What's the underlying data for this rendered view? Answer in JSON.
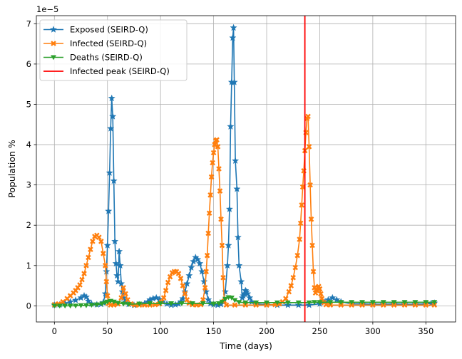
{
  "chart_data": {
    "type": "line",
    "title": "",
    "xlabel": "Time (days)",
    "ylabel": "Population %",
    "y_multiplier_label": "1e−5",
    "xlim": [
      -17,
      378
    ],
    "ylim": [
      -0.4,
      7.2
    ],
    "xticks": [
      0,
      50,
      100,
      150,
      200,
      250,
      300,
      350
    ],
    "yticks": [
      0,
      1,
      2,
      3,
      4,
      5,
      6,
      7
    ],
    "grid": true,
    "legend_position": "upper-left",
    "vline": {
      "name": "Infected peak (SEIRD-Q)",
      "x": 236,
      "color": "#ff0000"
    },
    "series": [
      {
        "name": "Exposed (SEIRD-Q)",
        "color": "#1f77b4",
        "marker": "star",
        "points": [
          [
            0,
            0.02
          ],
          [
            5,
            0.03
          ],
          [
            10,
            0.06
          ],
          [
            15,
            0.1
          ],
          [
            20,
            0.14
          ],
          [
            25,
            0.2
          ],
          [
            28,
            0.25
          ],
          [
            30,
            0.22
          ],
          [
            32,
            0.12
          ],
          [
            35,
            0.05
          ],
          [
            40,
            0.03
          ],
          [
            44,
            0.04
          ],
          [
            46,
            0.08
          ],
          [
            48,
            0.3
          ],
          [
            49,
            0.85
          ],
          [
            50,
            1.5
          ],
          [
            51,
            2.35
          ],
          [
            52,
            3.3
          ],
          [
            53,
            4.4
          ],
          [
            54,
            5.15
          ],
          [
            55,
            4.7
          ],
          [
            56,
            3.1
          ],
          [
            57,
            1.6
          ],
          [
            58,
            1.05
          ],
          [
            59,
            0.75
          ],
          [
            60,
            0.6
          ],
          [
            61,
            1.35
          ],
          [
            62,
            1.0
          ],
          [
            63,
            0.55
          ],
          [
            64,
            0.35
          ],
          [
            65,
            0.2
          ],
          [
            67,
            0.1
          ],
          [
            70,
            0.04
          ],
          [
            75,
            0.02
          ],
          [
            80,
            0.03
          ],
          [
            85,
            0.06
          ],
          [
            88,
            0.1
          ],
          [
            90,
            0.15
          ],
          [
            93,
            0.18
          ],
          [
            96,
            0.2
          ],
          [
            99,
            0.16
          ],
          [
            102,
            0.1
          ],
          [
            106,
            0.05
          ],
          [
            110,
            0.02
          ],
          [
            114,
            0.03
          ],
          [
            117,
            0.05
          ],
          [
            119,
            0.1
          ],
          [
            121,
            0.18
          ],
          [
            123,
            0.35
          ],
          [
            125,
            0.55
          ],
          [
            127,
            0.75
          ],
          [
            129,
            0.95
          ],
          [
            131,
            1.1
          ],
          [
            133,
            1.2
          ],
          [
            135,
            1.15
          ],
          [
            137,
            1.05
          ],
          [
            139,
            0.85
          ],
          [
            141,
            0.6
          ],
          [
            143,
            0.35
          ],
          [
            145,
            0.15
          ],
          [
            147,
            0.06
          ],
          [
            150,
            0.03
          ],
          [
            154,
            0.02
          ],
          [
            157,
            0.04
          ],
          [
            159,
            0.1
          ],
          [
            161,
            0.35
          ],
          [
            163,
            1.0
          ],
          [
            164,
            1.5
          ],
          [
            165,
            2.4
          ],
          [
            166,
            4.45
          ],
          [
            167,
            5.55
          ],
          [
            168,
            6.65
          ],
          [
            168.8,
            6.9
          ],
          [
            169.5,
            5.55
          ],
          [
            170.5,
            3.6
          ],
          [
            172,
            2.9
          ],
          [
            173,
            1.7
          ],
          [
            174,
            1.0
          ],
          [
            176,
            0.6
          ],
          [
            177,
            0.2
          ],
          [
            178,
            0.25
          ],
          [
            179,
            0.3
          ],
          [
            180,
            0.38
          ],
          [
            181,
            0.35
          ],
          [
            182,
            0.3
          ],
          [
            184,
            0.2
          ],
          [
            186,
            0.1
          ],
          [
            190,
            0.05
          ],
          [
            200,
            0.03
          ],
          [
            210,
            0.02
          ],
          [
            220,
            0.02
          ],
          [
            230,
            0.02
          ],
          [
            240,
            0.02
          ],
          [
            250,
            0.05
          ],
          [
            255,
            0.1
          ],
          [
            258,
            0.15
          ],
          [
            262,
            0.2
          ],
          [
            266,
            0.15
          ],
          [
            270,
            0.1
          ],
          [
            280,
            0.05
          ],
          [
            290,
            0.05
          ],
          [
            300,
            0.04
          ],
          [
            310,
            0.04
          ],
          [
            320,
            0.05
          ],
          [
            330,
            0.04
          ],
          [
            340,
            0.04
          ],
          [
            350,
            0.05
          ],
          [
            355,
            0.06
          ],
          [
            358,
            0.07
          ]
        ]
      },
      {
        "name": "Infected (SEIRD-Q)",
        "color": "#ff7f0e",
        "marker": "x",
        "points": [
          [
            0,
            0.03
          ],
          [
            4,
            0.05
          ],
          [
            8,
            0.1
          ],
          [
            12,
            0.18
          ],
          [
            15,
            0.25
          ],
          [
            18,
            0.32
          ],
          [
            20,
            0.38
          ],
          [
            22,
            0.45
          ],
          [
            24,
            0.52
          ],
          [
            26,
            0.65
          ],
          [
            28,
            0.8
          ],
          [
            30,
            1.0
          ],
          [
            32,
            1.2
          ],
          [
            34,
            1.4
          ],
          [
            36,
            1.6
          ],
          [
            38,
            1.72
          ],
          [
            40,
            1.75
          ],
          [
            42,
            1.7
          ],
          [
            44,
            1.6
          ],
          [
            46,
            1.3
          ],
          [
            48,
            1.0
          ],
          [
            49,
            0.6
          ],
          [
            50,
            0.25
          ],
          [
            51,
            0.06
          ],
          [
            53,
            0.02
          ],
          [
            56,
            0.02
          ],
          [
            60,
            0.05
          ],
          [
            63,
            0.2
          ],
          [
            65,
            0.45
          ],
          [
            67,
            0.3
          ],
          [
            69,
            0.15
          ],
          [
            72,
            0.05
          ],
          [
            76,
            0.02
          ],
          [
            80,
            0.02
          ],
          [
            85,
            0.02
          ],
          [
            90,
            0.02
          ],
          [
            95,
            0.03
          ],
          [
            99,
            0.05
          ],
          [
            101,
            0.1
          ],
          [
            103,
            0.2
          ],
          [
            105,
            0.38
          ],
          [
            107,
            0.58
          ],
          [
            109,
            0.72
          ],
          [
            111,
            0.82
          ],
          [
            113,
            0.85
          ],
          [
            115,
            0.85
          ],
          [
            117,
            0.8
          ],
          [
            119,
            0.68
          ],
          [
            121,
            0.5
          ],
          [
            123,
            0.3
          ],
          [
            125,
            0.15
          ],
          [
            127,
            0.07
          ],
          [
            130,
            0.03
          ],
          [
            134,
            0.02
          ],
          [
            138,
            0.03
          ],
          [
            140,
            0.15
          ],
          [
            142,
            0.45
          ],
          [
            143,
            0.85
          ],
          [
            144,
            1.25
          ],
          [
            145,
            1.8
          ],
          [
            146,
            2.3
          ],
          [
            147,
            2.75
          ],
          [
            148,
            3.2
          ],
          [
            149,
            3.55
          ],
          [
            150,
            3.8
          ],
          [
            151,
            4.0
          ],
          [
            152,
            4.1
          ],
          [
            153,
            4.12
          ],
          [
            154,
            3.95
          ],
          [
            155,
            3.4
          ],
          [
            156,
            2.85
          ],
          [
            157,
            2.15
          ],
          [
            158,
            1.5
          ],
          [
            159,
            0.7
          ],
          [
            160,
            0.12
          ],
          [
            162,
            0.02
          ],
          [
            170,
            0.02
          ],
          [
            180,
            0.02
          ],
          [
            190,
            0.02
          ],
          [
            200,
            0.02
          ],
          [
            208,
            0.03
          ],
          [
            212,
            0.05
          ],
          [
            215,
            0.1
          ],
          [
            218,
            0.18
          ],
          [
            221,
            0.35
          ],
          [
            223,
            0.5
          ],
          [
            225,
            0.7
          ],
          [
            227,
            0.95
          ],
          [
            229,
            1.25
          ],
          [
            231,
            1.65
          ],
          [
            232,
            2.05
          ],
          [
            233,
            2.5
          ],
          [
            234,
            2.95
          ],
          [
            235,
            3.35
          ],
          [
            236,
            3.85
          ],
          [
            237,
            4.3
          ],
          [
            238,
            4.65
          ],
          [
            239,
            4.7
          ],
          [
            240,
            3.95
          ],
          [
            241,
            3.0
          ],
          [
            242,
            2.15
          ],
          [
            243,
            1.5
          ],
          [
            244,
            0.85
          ],
          [
            245,
            0.45
          ],
          [
            246,
            0.32
          ],
          [
            247,
            0.38
          ],
          [
            248,
            0.45
          ],
          [
            249,
            0.48
          ],
          [
            250,
            0.42
          ],
          [
            251,
            0.3
          ],
          [
            252,
            0.18
          ],
          [
            254,
            0.08
          ],
          [
            256,
            0.03
          ],
          [
            260,
            0.02
          ],
          [
            270,
            0.02
          ],
          [
            280,
            0.02
          ],
          [
            290,
            0.02
          ],
          [
            300,
            0.02
          ],
          [
            310,
            0.02
          ],
          [
            320,
            0.02
          ],
          [
            330,
            0.02
          ],
          [
            340,
            0.02
          ],
          [
            350,
            0.02
          ],
          [
            358,
            0.02
          ]
        ]
      },
      {
        "name": "Deaths (SEIRD-Q)",
        "color": "#2ca02c",
        "marker": "triangle-down",
        "points": [
          [
            0,
            0.0
          ],
          [
            5,
            0.0
          ],
          [
            10,
            0.0
          ],
          [
            15,
            0.0
          ],
          [
            20,
            0.0
          ],
          [
            25,
            0.01
          ],
          [
            30,
            0.01
          ],
          [
            35,
            0.02
          ],
          [
            40,
            0.03
          ],
          [
            45,
            0.05
          ],
          [
            48,
            0.08
          ],
          [
            50,
            0.1
          ],
          [
            53,
            0.12
          ],
          [
            56,
            0.1
          ],
          [
            60,
            0.07
          ],
          [
            65,
            0.05
          ],
          [
            70,
            0.04
          ],
          [
            80,
            0.05
          ],
          [
            90,
            0.06
          ],
          [
            100,
            0.06
          ],
          [
            110,
            0.06
          ],
          [
            120,
            0.06
          ],
          [
            130,
            0.06
          ],
          [
            140,
            0.06
          ],
          [
            150,
            0.05
          ],
          [
            155,
            0.06
          ],
          [
            158,
            0.1
          ],
          [
            161,
            0.17
          ],
          [
            164,
            0.21
          ],
          [
            167,
            0.2
          ],
          [
            170,
            0.14
          ],
          [
            174,
            0.09
          ],
          [
            180,
            0.08
          ],
          [
            190,
            0.08
          ],
          [
            200,
            0.08
          ],
          [
            210,
            0.08
          ],
          [
            220,
            0.08
          ],
          [
            230,
            0.08
          ],
          [
            240,
            0.08
          ],
          [
            245,
            0.09
          ],
          [
            250,
            0.09
          ],
          [
            260,
            0.09
          ],
          [
            270,
            0.09
          ],
          [
            280,
            0.09
          ],
          [
            290,
            0.09
          ],
          [
            300,
            0.09
          ],
          [
            310,
            0.09
          ],
          [
            320,
            0.09
          ],
          [
            330,
            0.09
          ],
          [
            340,
            0.09
          ],
          [
            350,
            0.09
          ],
          [
            358,
            0.09
          ]
        ]
      }
    ]
  }
}
